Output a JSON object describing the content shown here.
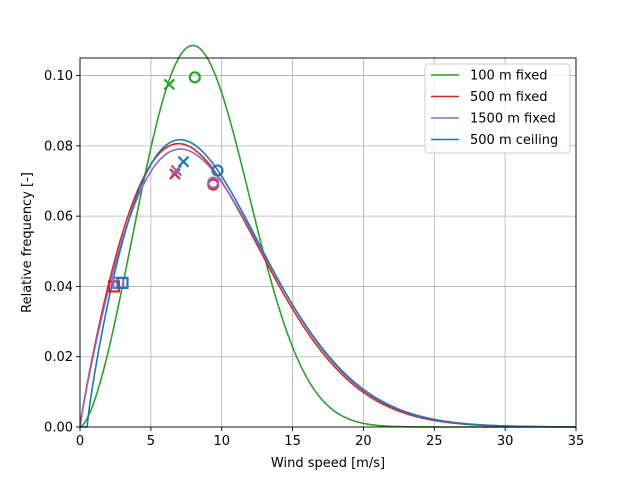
{
  "chart_data": {
    "type": "line",
    "title": "",
    "xlabel": "Wind speed [m/s]",
    "ylabel": "Relative frequency [-]",
    "xlim": [
      0,
      35
    ],
    "ylim": [
      0,
      0.105
    ],
    "xticks": [
      0,
      5,
      10,
      15,
      20,
      25,
      30,
      35
    ],
    "yticks": [
      0.0,
      0.02,
      0.04,
      0.06,
      0.08,
      0.1
    ],
    "xtick_labels": [
      "0",
      "5",
      "10",
      "15",
      "20",
      "25",
      "30",
      "35"
    ],
    "ytick_labels": [
      "0.00",
      "0.02",
      "0.04",
      "0.06",
      "0.08",
      "0.10"
    ],
    "grid": true,
    "legend_position": "top-right",
    "series": [
      {
        "name": "100 m fixed",
        "color": "#2ca02c",
        "distribution": "weibull",
        "shape_k": 2.6,
        "scale_c": 9.6,
        "x_offset": 0,
        "marker_x": {
          "x": 6.3,
          "y": 0.0975
        },
        "marker_o": {
          "x": 8.1,
          "y": 0.0995
        }
      },
      {
        "name": "500 m fixed",
        "color": "#d62728",
        "distribution": "weibull",
        "shape_k": 1.9,
        "scale_c": 10.3,
        "x_offset": 0,
        "marker_x": {
          "x": 6.7,
          "y": 0.072
        },
        "marker_o": {
          "x": 9.4,
          "y": 0.069
        },
        "marker_s": {
          "x": 2.4,
          "y": 0.04
        }
      },
      {
        "name": "1500 m fixed",
        "color": "#9467bd",
        "distribution": "weibull",
        "shape_k": 1.9,
        "scale_c": 10.5,
        "x_offset": 0,
        "marker_x": {
          "x": 6.8,
          "y": 0.073
        },
        "marker_o": {
          "x": 9.4,
          "y": 0.0695
        },
        "marker_s": {
          "x": 2.7,
          "y": 0.041
        }
      },
      {
        "name": "500 m ceiling",
        "color": "#1f77b4",
        "distribution": "weibull",
        "shape_k": 1.85,
        "scale_c": 10.0,
        "x_offset": 0.5,
        "marker_x": {
          "x": 7.3,
          "y": 0.0755
        },
        "marker_o": {
          "x": 9.7,
          "y": 0.073
        },
        "marker_s": {
          "x": 3.0,
          "y": 0.041
        }
      }
    ]
  }
}
